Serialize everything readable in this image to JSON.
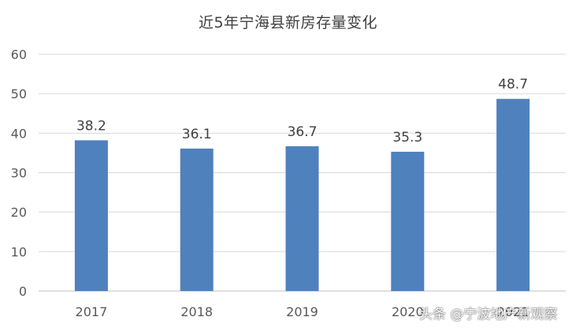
{
  "chart_data": {
    "type": "bar",
    "title": "近5年宁海县新房存量变化",
    "categories": [
      "2017",
      "2018",
      "2019",
      "2020",
      "2021"
    ],
    "values": [
      38.2,
      36.1,
      36.7,
      35.3,
      48.7
    ],
    "value_labels": [
      "38.2",
      "36.1",
      "36.7",
      "35.3",
      "48.7"
    ],
    "ylim": [
      0,
      60
    ],
    "yticks": [
      "0",
      "10",
      "20",
      "30",
      "40",
      "50",
      "60"
    ],
    "grid": true,
    "bar_color": "#4f81bd"
  },
  "watermark": "头条 @宁波地产新观察"
}
